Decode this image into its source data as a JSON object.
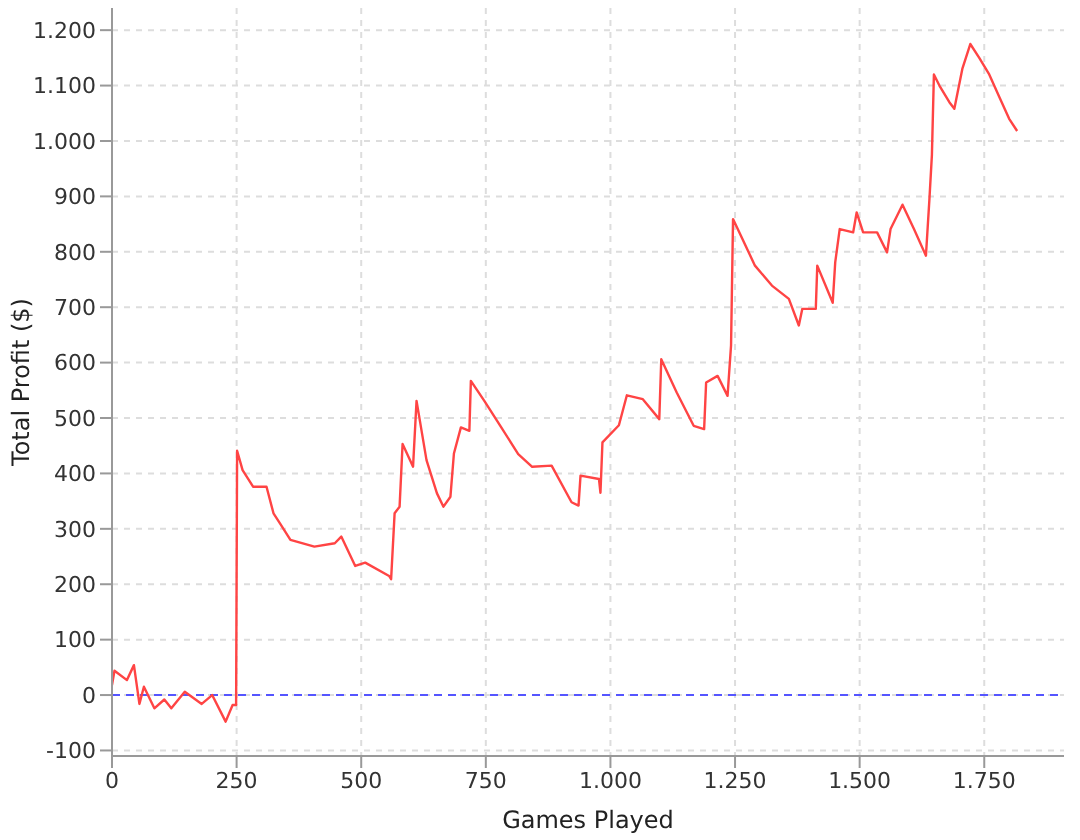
{
  "chart_data": {
    "type": "line",
    "xlabel": "Games Played",
    "ylabel": "Total Profit ($)",
    "x": [
      0,
      5,
      30,
      44,
      55,
      64,
      85,
      105,
      119,
      146,
      180,
      201,
      228,
      242,
      249,
      251,
      262,
      283,
      310,
      324,
      337,
      358,
      406,
      447,
      460,
      488,
      508,
      556,
      560,
      567,
      577,
      583,
      604,
      611,
      631,
      652,
      665,
      679,
      686,
      700,
      717,
      720,
      747,
      781,
      815,
      843,
      882,
      922,
      936,
      940,
      977,
      980,
      984,
      1017,
      1033,
      1065,
      1098,
      1102,
      1133,
      1167,
      1188,
      1192,
      1215,
      1235,
      1242,
      1246,
      1290,
      1324,
      1358,
      1378,
      1385,
      1412,
      1415,
      1446,
      1451,
      1460,
      1487,
      1494,
      1507,
      1535,
      1555,
      1562,
      1586,
      1609,
      1633,
      1640,
      1645,
      1649,
      1660,
      1680,
      1690,
      1706,
      1722,
      1740,
      1760,
      1780,
      1800,
      1816
    ],
    "series": [
      {
        "color": "#ff4444",
        "values": [
          18,
          44,
          27,
          54,
          -16,
          15,
          -24,
          -8,
          -24,
          6,
          -16,
          0,
          -48,
          -18,
          -18,
          441,
          406,
          376,
          376,
          328,
          310,
          280,
          268,
          274,
          286,
          233,
          239,
          215,
          209,
          328,
          340,
          453,
          412,
          531,
          424,
          364,
          340,
          358,
          436,
          483,
          477,
          567,
          531,
          483,
          435,
          412,
          414,
          348,
          342,
          396,
          390,
          365,
          456,
          487,
          541,
          534,
          498,
          606,
          546,
          486,
          480,
          564,
          576,
          540,
          631,
          859,
          775,
          739,
          715,
          667,
          697,
          697,
          775,
          708,
          781,
          841,
          835,
          871,
          835,
          835,
          799,
          841,
          885,
          841,
          793,
          895,
          975,
          1120,
          1100,
          1070,
          1058,
          1130,
          1175,
          1150,
          1120,
          1080,
          1040,
          1018
        ]
      }
    ],
    "xlim": [
      0,
      1910
    ],
    "ylim": [
      -110,
      1240
    ],
    "xticks": [
      0,
      250,
      500,
      750,
      {
        "value": 1000,
        "label": "1.000"
      },
      {
        "value": 1250,
        "label": "1.250"
      },
      {
        "value": 1500,
        "label": "1.500"
      },
      {
        "value": 1750,
        "label": "1.750"
      }
    ],
    "yticks": [
      -100,
      0,
      100,
      200,
      300,
      400,
      500,
      600,
      700,
      800,
      900,
      {
        "value": 1000,
        "label": "1.000"
      },
      {
        "value": 1100,
        "label": "1.100"
      },
      {
        "value": 1200,
        "label": "1.200"
      }
    ],
    "ref_lines": [
      {
        "axis": "y",
        "value": 0,
        "color": "#5555ff",
        "line_style": "dashed"
      }
    ],
    "grid": true,
    "legend": false,
    "marker": "none",
    "line_style": "solid"
  }
}
